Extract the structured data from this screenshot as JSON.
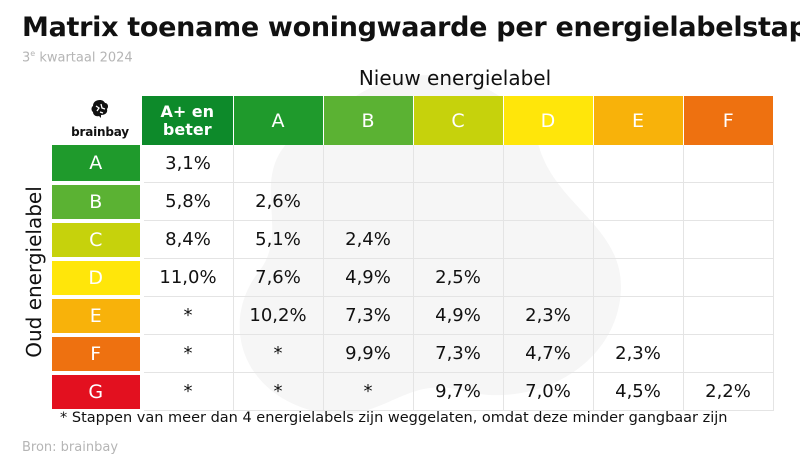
{
  "title": "Matrix toename woningwaarde per energielabelstap",
  "subtitle_main": "3",
  "subtitle_sup": "e",
  "subtitle_rest": " kwartaal 2024",
  "logo_text": "brainbay",
  "footnote": "* Stappen van meer dan 4 energielabels zijn weggelaten, omdat deze minder gangbaar zijn",
  "source": "Bron: brainbay",
  "chart_data": {
    "type": "table",
    "title": "Matrix toename woningwaarde per energielabelstap",
    "subtitle": "3e kwartaal 2024",
    "column_axis_label": "Nieuw energielabel",
    "row_axis_label": "Oud energielabel",
    "columns": [
      {
        "label": "A+ en beter",
        "label_line1": "A+ en",
        "label_line2": "beter",
        "color": "#0d8a2a"
      },
      {
        "label": "A",
        "color": "#1f9a2c"
      },
      {
        "label": "B",
        "color": "#5bb233"
      },
      {
        "label": "C",
        "color": "#c6d20c"
      },
      {
        "label": "D",
        "color": "#ffe60a"
      },
      {
        "label": "E",
        "color": "#f8b20a"
      },
      {
        "label": "F",
        "color": "#ee7110"
      }
    ],
    "rows": [
      {
        "label": "A",
        "color": "#1f9a2c",
        "values": [
          "3,1%",
          "",
          "",
          "",
          "",
          "",
          ""
        ]
      },
      {
        "label": "B",
        "color": "#5bb233",
        "values": [
          "5,8%",
          "2,6%",
          "",
          "",
          "",
          "",
          ""
        ]
      },
      {
        "label": "C",
        "color": "#c6d20c",
        "values": [
          "8,4%",
          "5,1%",
          "2,4%",
          "",
          "",
          "",
          ""
        ]
      },
      {
        "label": "D",
        "color": "#ffe60a",
        "values": [
          "11,0%",
          "7,6%",
          "4,9%",
          "2,5%",
          "",
          "",
          ""
        ]
      },
      {
        "label": "E",
        "color": "#f8b20a",
        "values": [
          "*",
          "10,2%",
          "7,3%",
          "4,9%",
          "2,3%",
          "",
          ""
        ]
      },
      {
        "label": "F",
        "color": "#ee7110",
        "values": [
          "*",
          "*",
          "9,9%",
          "7,3%",
          "4,7%",
          "2,3%",
          ""
        ]
      },
      {
        "label": "G",
        "color": "#e3101f",
        "values": [
          "*",
          "*",
          "*",
          "9,7%",
          "7,0%",
          "4,5%",
          "2,2%"
        ]
      }
    ]
  }
}
